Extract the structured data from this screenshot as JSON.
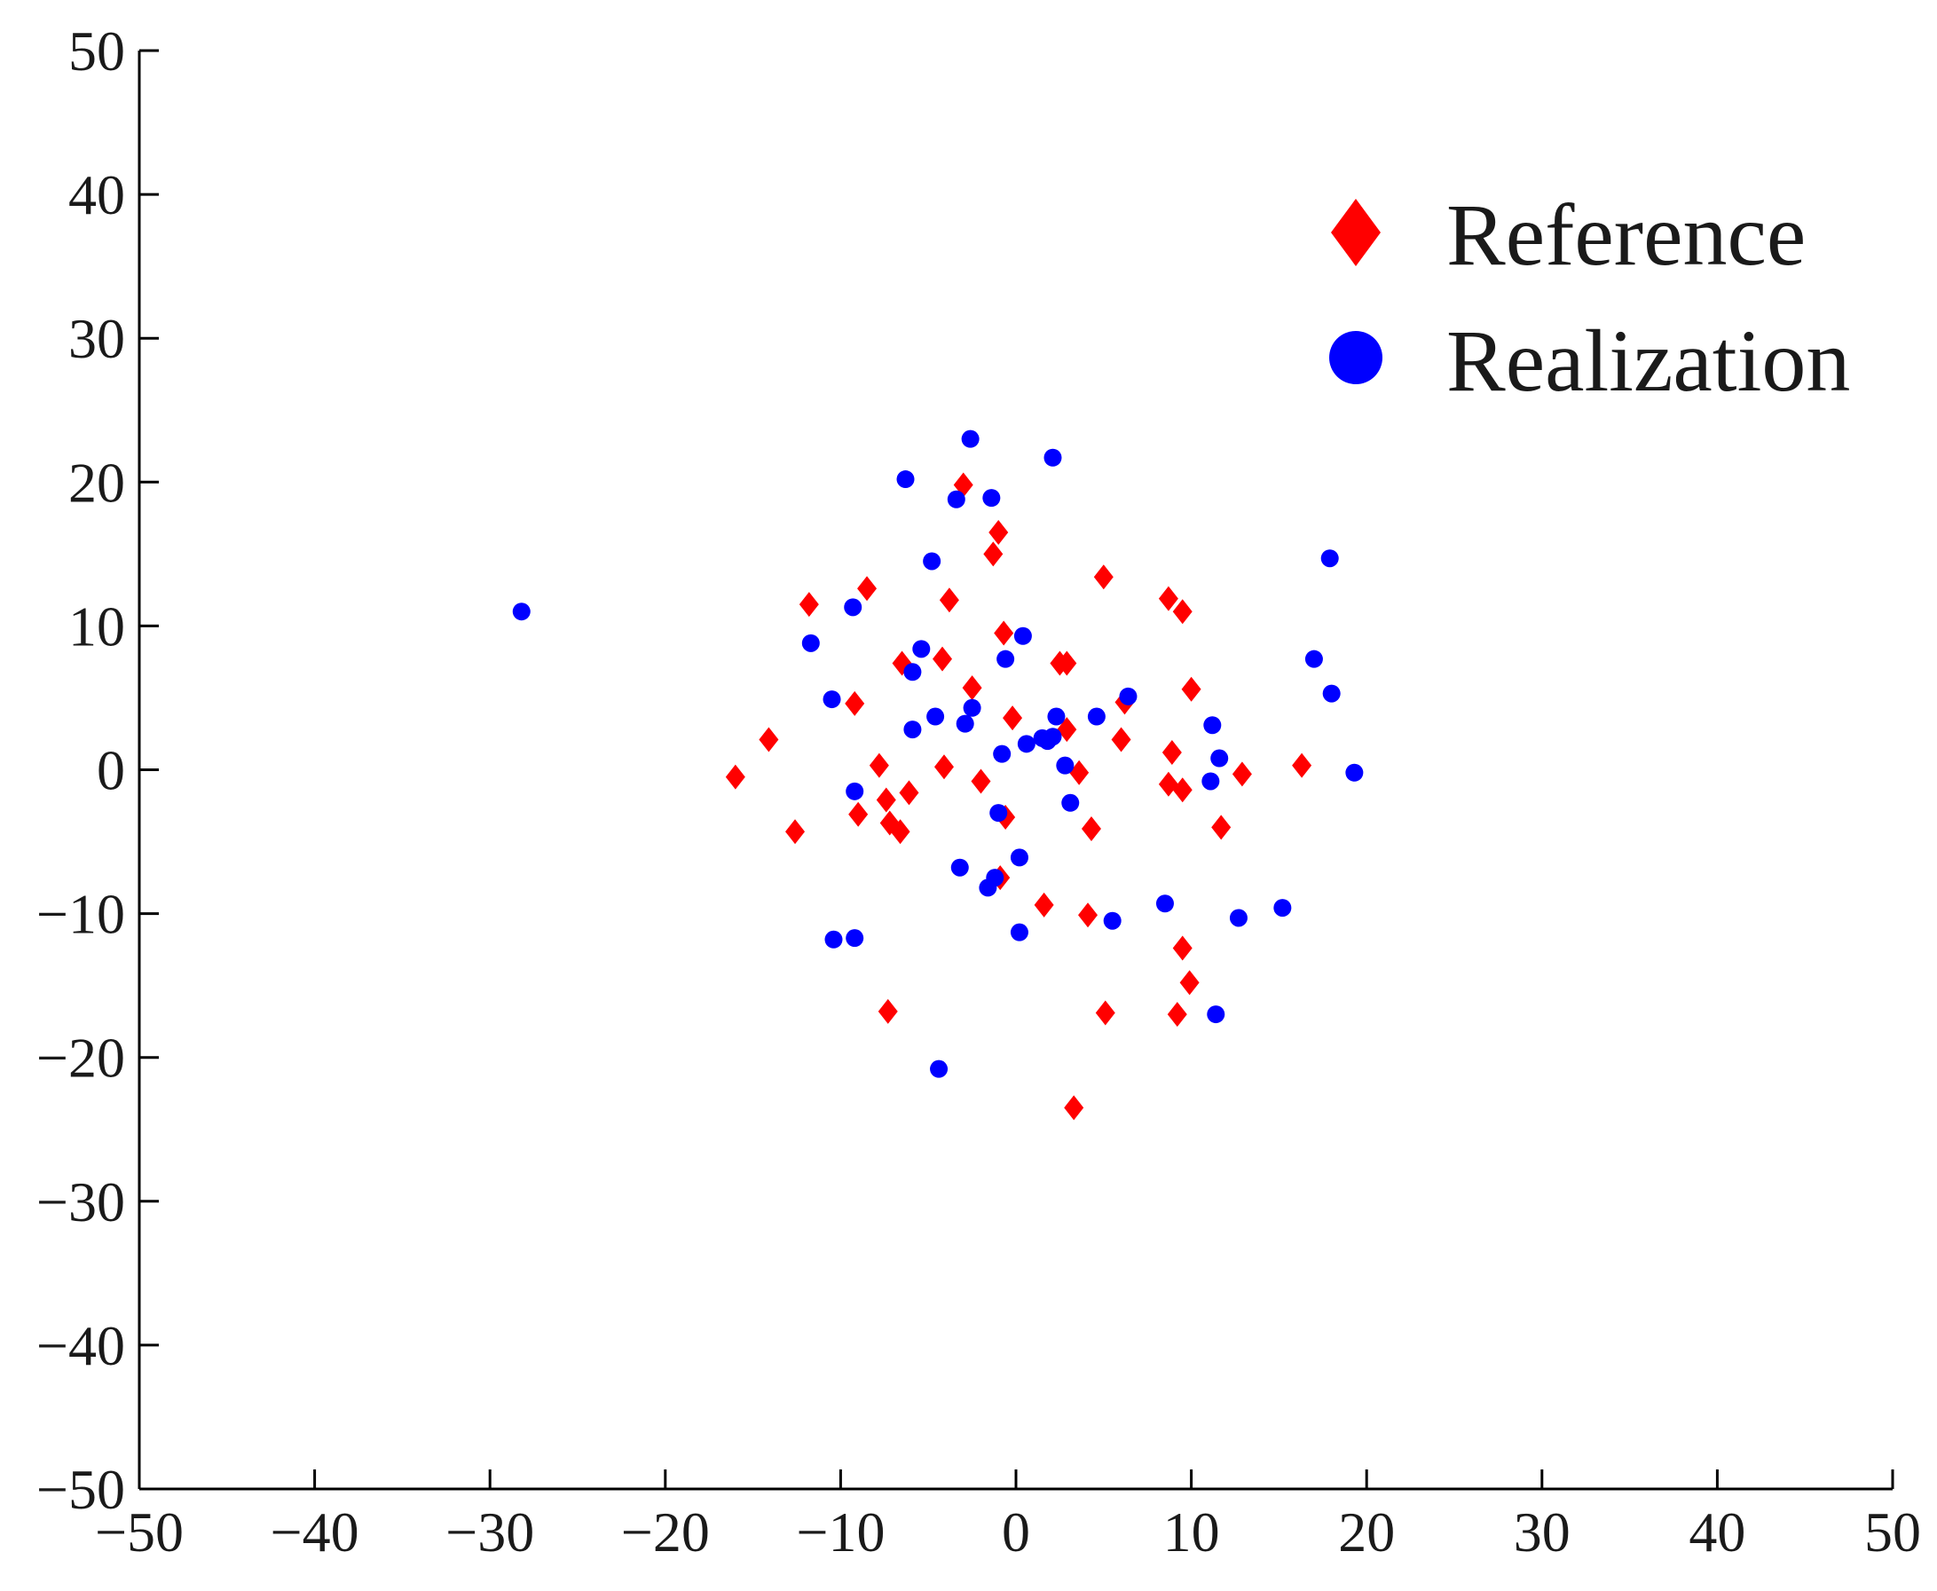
{
  "chart_data": {
    "type": "scatter",
    "title": "",
    "xlabel": "",
    "ylabel": "",
    "xlim": [
      -50,
      50
    ],
    "ylim": [
      -50,
      50
    ],
    "xticks": [
      -50,
      -40,
      -30,
      -20,
      -10,
      0,
      10,
      20,
      30,
      40,
      50
    ],
    "yticks": [
      -50,
      -40,
      -30,
      -20,
      -10,
      0,
      10,
      20,
      30,
      40,
      50
    ],
    "grid": false,
    "legend_position": "top-right",
    "series": [
      {
        "name": "Reference",
        "marker": "diamond",
        "color": "#ff0000",
        "points": [
          [
            -3.0,
            19.8
          ],
          [
            -1.0,
            16.5
          ],
          [
            -1.3,
            15.0
          ],
          [
            -8.5,
            12.6
          ],
          [
            -11.8,
            11.5
          ],
          [
            -3.8,
            11.8
          ],
          [
            5.0,
            13.4
          ],
          [
            8.7,
            11.9
          ],
          [
            9.5,
            11.0
          ],
          [
            -0.7,
            9.5
          ],
          [
            -6.5,
            7.4
          ],
          [
            -4.2,
            7.7
          ],
          [
            2.5,
            7.4
          ],
          [
            2.9,
            7.4
          ],
          [
            -2.5,
            5.7
          ],
          [
            10.0,
            5.6
          ],
          [
            -9.2,
            4.6
          ],
          [
            6.2,
            4.7
          ],
          [
            -0.2,
            3.6
          ],
          [
            2.9,
            2.8
          ],
          [
            -14.1,
            2.1
          ],
          [
            6.0,
            2.1
          ],
          [
            8.9,
            1.2
          ],
          [
            -7.8,
            0.3
          ],
          [
            -4.1,
            0.2
          ],
          [
            3.6,
            -0.2
          ],
          [
            12.9,
            -0.3
          ],
          [
            16.3,
            0.3
          ],
          [
            -16.0,
            -0.5
          ],
          [
            -2.0,
            -0.8
          ],
          [
            8.7,
            -1.0
          ],
          [
            9.5,
            -1.4
          ],
          [
            -6.1,
            -1.6
          ],
          [
            -7.4,
            -2.1
          ],
          [
            -9.0,
            -3.1
          ],
          [
            -0.6,
            -3.3
          ],
          [
            -7.2,
            -3.7
          ],
          [
            -6.6,
            -4.3
          ],
          [
            4.3,
            -4.1
          ],
          [
            11.7,
            -4.0
          ],
          [
            -12.6,
            -4.3
          ],
          [
            -0.9,
            -7.5
          ],
          [
            1.6,
            -9.4
          ],
          [
            4.1,
            -10.1
          ],
          [
            9.5,
            -12.4
          ],
          [
            9.9,
            -14.8
          ],
          [
            -7.3,
            -16.8
          ],
          [
            5.1,
            -16.9
          ],
          [
            9.2,
            -17.0
          ],
          [
            3.3,
            -23.5
          ]
        ]
      },
      {
        "name": "Realization",
        "marker": "circle",
        "color": "#0000ff",
        "points": [
          [
            -2.6,
            23.0
          ],
          [
            2.1,
            21.7
          ],
          [
            -6.3,
            20.2
          ],
          [
            -3.4,
            18.8
          ],
          [
            -1.4,
            18.9
          ],
          [
            17.9,
            14.7
          ],
          [
            -4.8,
            14.5
          ],
          [
            -28.2,
            11.0
          ],
          [
            -9.3,
            11.3
          ],
          [
            -11.7,
            8.8
          ],
          [
            0.4,
            9.3
          ],
          [
            -5.4,
            8.4
          ],
          [
            -0.6,
            7.7
          ],
          [
            17.0,
            7.7
          ],
          [
            -5.9,
            6.8
          ],
          [
            18.0,
            5.3
          ],
          [
            -10.5,
            4.9
          ],
          [
            6.4,
            5.1
          ],
          [
            -2.5,
            4.3
          ],
          [
            -4.6,
            3.7
          ],
          [
            2.3,
            3.7
          ],
          [
            4.6,
            3.7
          ],
          [
            -2.9,
            3.2
          ],
          [
            11.2,
            3.1
          ],
          [
            -5.9,
            2.8
          ],
          [
            2.1,
            2.3
          ],
          [
            1.5,
            2.2
          ],
          [
            1.8,
            2.0
          ],
          [
            0.6,
            1.8
          ],
          [
            -0.8,
            1.1
          ],
          [
            11.6,
            0.8
          ],
          [
            2.8,
            0.3
          ],
          [
            19.3,
            -0.2
          ],
          [
            11.1,
            -0.8
          ],
          [
            -9.2,
            -1.5
          ],
          [
            3.1,
            -2.3
          ],
          [
            -1.0,
            -3.0
          ],
          [
            0.2,
            -6.1
          ],
          [
            -3.2,
            -6.8
          ],
          [
            -1.2,
            -7.5
          ],
          [
            -1.6,
            -8.2
          ],
          [
            8.5,
            -9.3
          ],
          [
            15.2,
            -9.6
          ],
          [
            12.7,
            -10.3
          ],
          [
            5.5,
            -10.5
          ],
          [
            0.2,
            -11.3
          ],
          [
            -10.4,
            -11.8
          ],
          [
            -9.2,
            -11.7
          ],
          [
            11.4,
            -17.0
          ],
          [
            -4.4,
            -20.8
          ]
        ]
      }
    ]
  }
}
